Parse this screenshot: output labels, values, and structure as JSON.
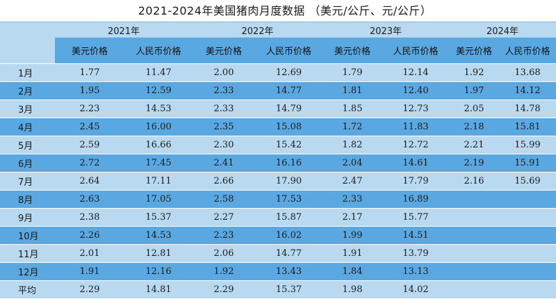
{
  "title": "2021-2024年美国猪肉月度数据 （美元/公斤、元/公斤）",
  "years": [
    "2021年",
    "2022年",
    "2023年",
    "2024年"
  ],
  "sub_headers": [
    "美元价格",
    "人民币价格"
  ],
  "rows": [
    {
      "label": "1月",
      "values": [
        "1.77",
        "11.47",
        "2.00",
        "12.69",
        "1.79",
        "12.14",
        "1.92",
        "13.68"
      ]
    },
    {
      "label": "2月",
      "values": [
        "1.95",
        "12.59",
        "2.33",
        "14.77",
        "1.81",
        "12.40",
        "1.97",
        "14.12"
      ]
    },
    {
      "label": "3月",
      "values": [
        "2.23",
        "14.53",
        "2.33",
        "14.79",
        "1.85",
        "12.73",
        "2.05",
        "14.78"
      ]
    },
    {
      "label": "4月",
      "values": [
        "2.45",
        "16.00",
        "2.35",
        "15.08",
        "1.72",
        "11.83",
        "2.18",
        "15.81"
      ]
    },
    {
      "label": "5月",
      "values": [
        "2.59",
        "16.66",
        "2.30",
        "15.42",
        "1.82",
        "12.72",
        "2.21",
        "15.99"
      ]
    },
    {
      "label": "6月",
      "values": [
        "2.72",
        "17.45",
        "2.41",
        "16.16",
        "2.04",
        "14.61",
        "2.19",
        "15.91"
      ]
    },
    {
      "label": "7月",
      "values": [
        "2.64",
        "17.11",
        "2.66",
        "17.90",
        "2.47",
        "17.79",
        "2.16",
        "15.69"
      ]
    },
    {
      "label": "8月",
      "values": [
        "2.63",
        "17.05",
        "2.58",
        "17.53",
        "2.33",
        "16.89",
        "",
        ""
      ]
    },
    {
      "label": "9月",
      "values": [
        "2.38",
        "15.37",
        "2.27",
        "15.87",
        "2.17",
        "15.77",
        "",
        ""
      ]
    },
    {
      "label": "10月",
      "values": [
        "2.26",
        "14.53",
        "2.23",
        "16.02",
        "1.99",
        "14.51",
        "",
        ""
      ]
    },
    {
      "label": "11月",
      "values": [
        "2.01",
        "12.81",
        "2.06",
        "14.77",
        "1.91",
        "13.79",
        "",
        ""
      ]
    },
    {
      "label": "12月",
      "values": [
        "1.91",
        "12.16",
        "1.92",
        "13.43",
        "1.84",
        "13.13",
        "",
        ""
      ]
    },
    {
      "label": "平均",
      "values": [
        "2.29",
        "14.81",
        "2.29",
        "15.37",
        "1.98",
        "14.02",
        "",
        ""
      ]
    }
  ]
}
